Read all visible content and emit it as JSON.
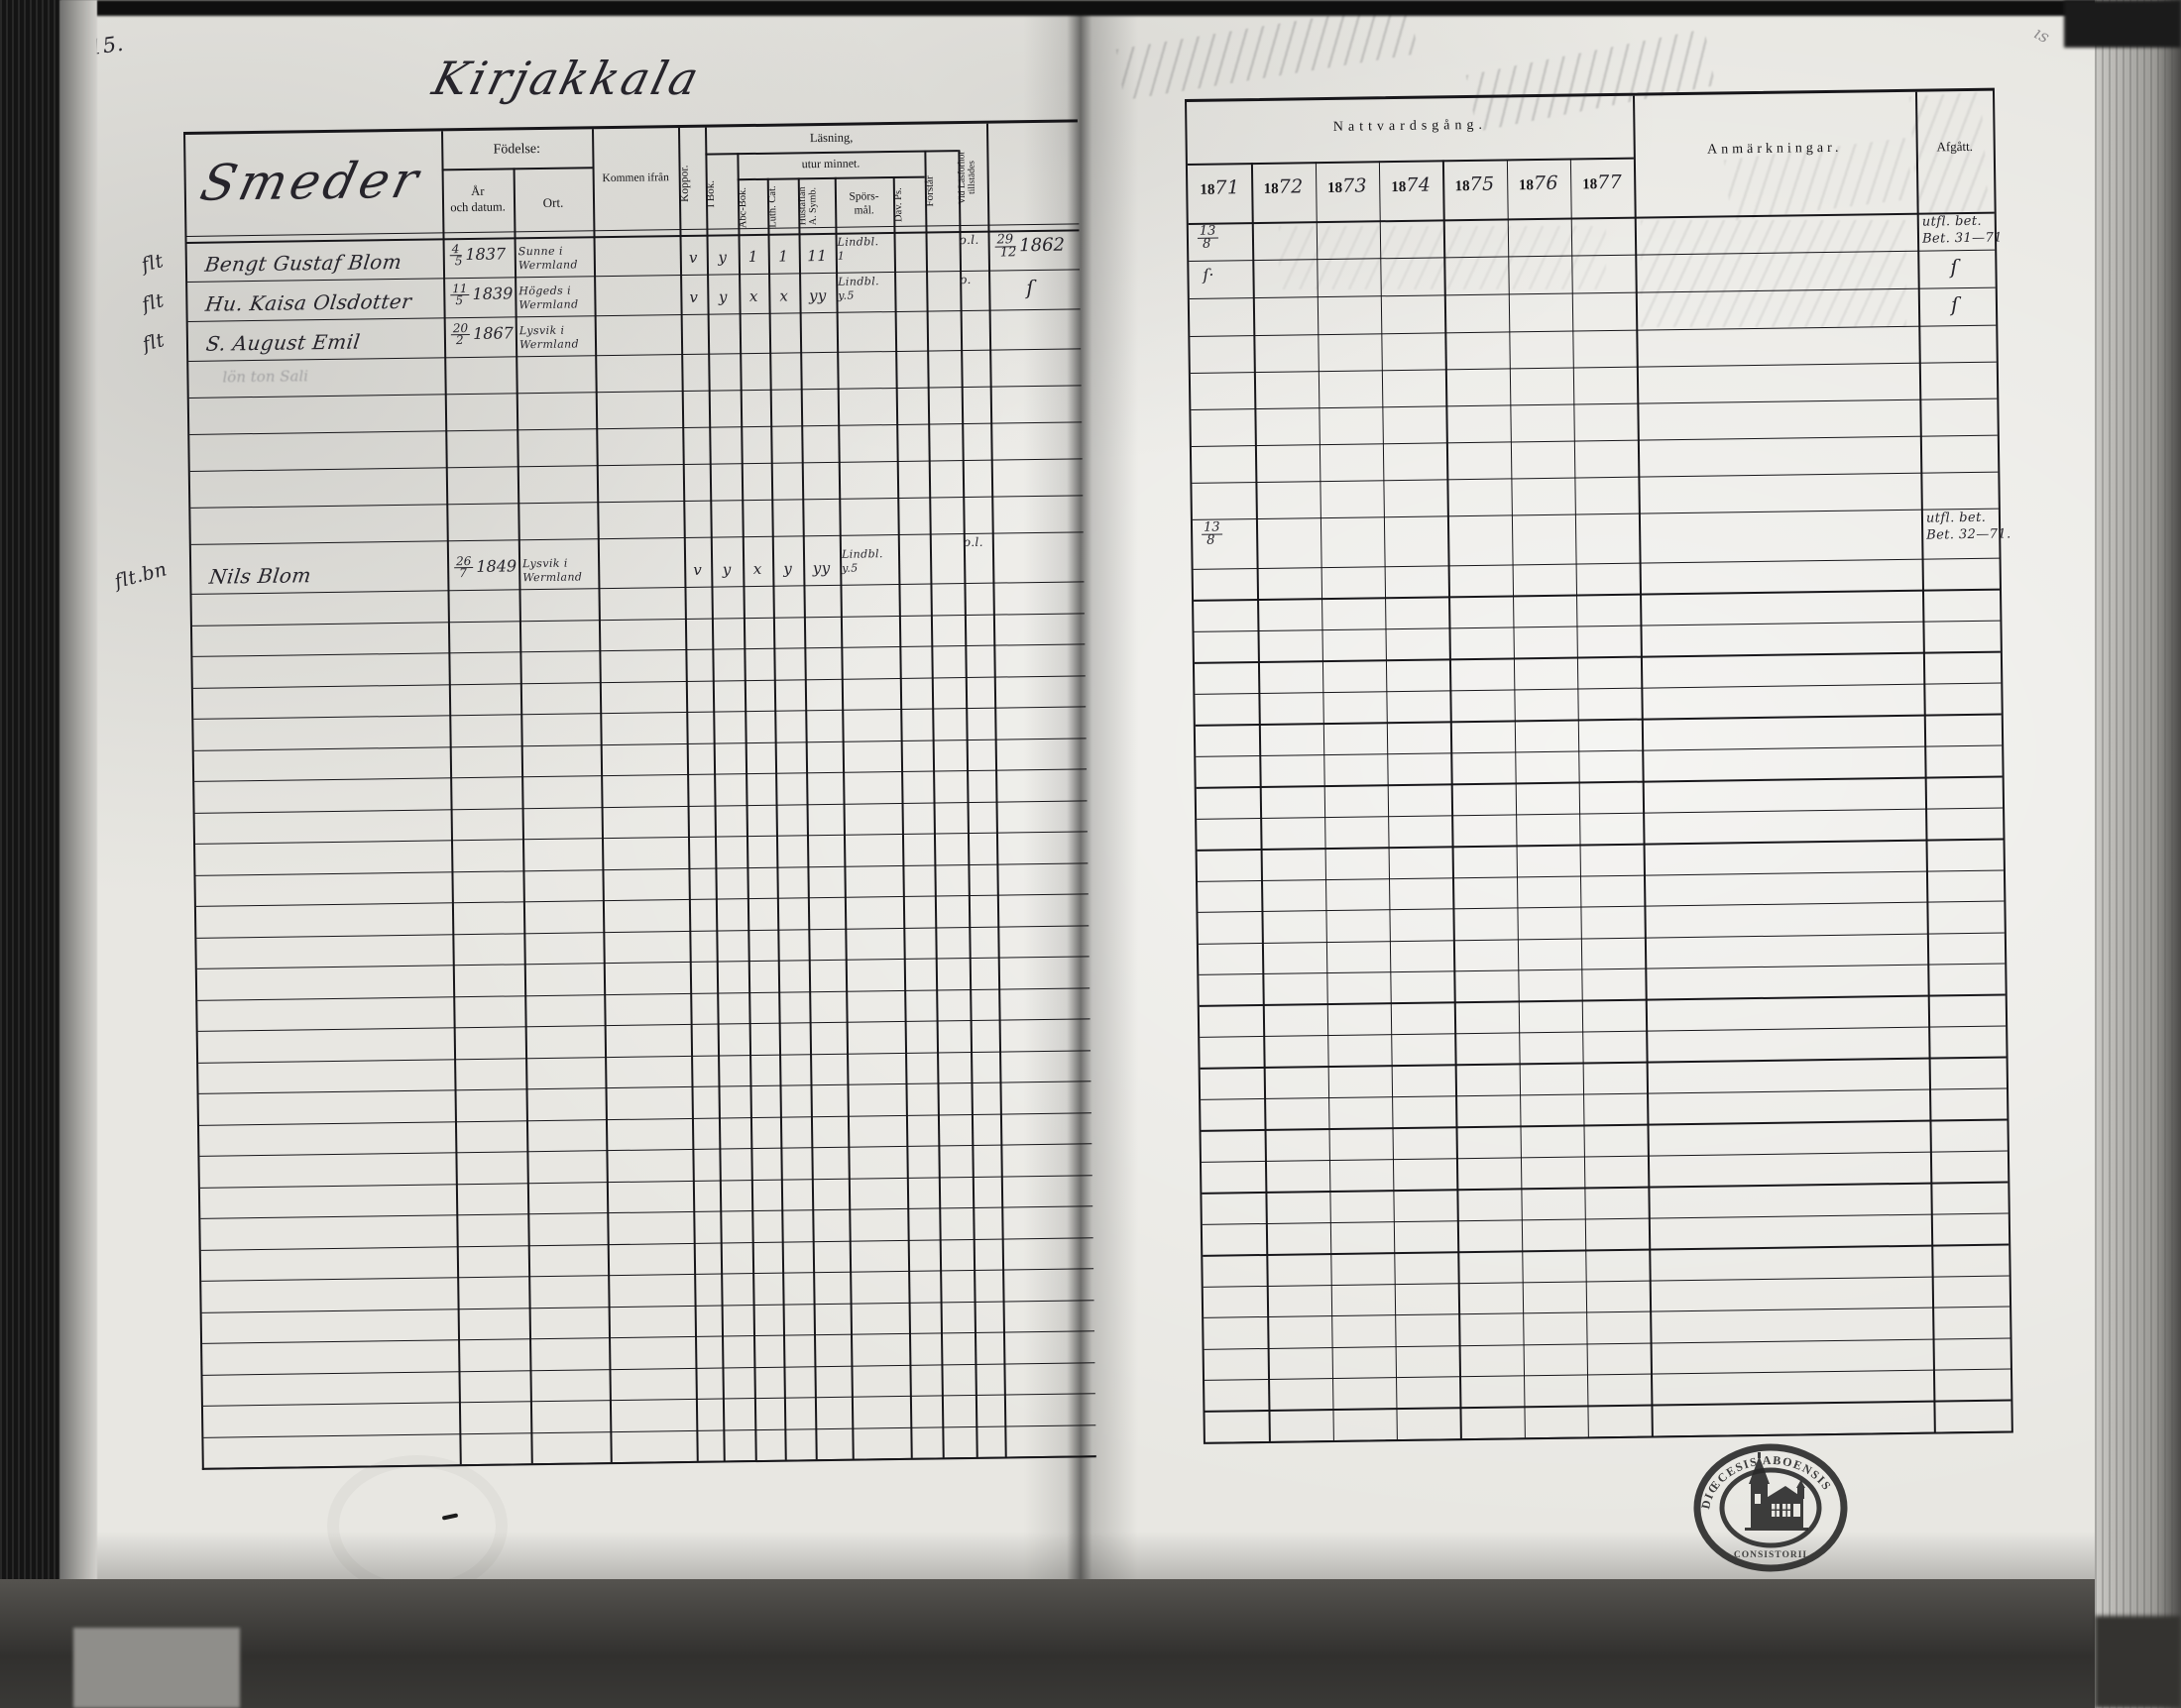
{
  "scan": {
    "page_number": "15.",
    "title": "Kirjakkala"
  },
  "left_table": {
    "category": "Smeder",
    "fodelse": "Födelse:",
    "ar_och_datum": "År\noch datum.",
    "ort": "Ort.",
    "kommen_ifran": "Kommen ifrån",
    "koppor": "Koppor.",
    "lasning": "Läsning,",
    "utur_minnet": "utur minnet.",
    "i_bok": "I Bok.",
    "abc_bok": "Abc-Bok.",
    "luth_cat": "Luth. Cat.",
    "hustaflan": "Hustaflan\nA. Symb.",
    "sporsmal": "Spörs-\nmål.",
    "dav_ps": "Dav. Ps.",
    "forstar": "Förstår",
    "vid_lasforhor": "Vid Läsförhör\ntillstädes"
  },
  "right_table": {
    "nattvardsgang": "Nattvardsgång.",
    "year_prefix": "18",
    "years": [
      "71",
      "72",
      "73",
      "74",
      "75",
      "76",
      "77"
    ],
    "anmarkningar": "Anmärkningar.",
    "afgatt": "Afgått."
  },
  "stamp": {
    "top_text": "DIŒCESIS ABOENSIS",
    "bottom_text": "CONSISTORII"
  },
  "rows": [
    {
      "margin": "flt",
      "name": "Bengt Gustaf Blom",
      "birth_num": "4",
      "birth_den": "5",
      "birth_year": "1837",
      "ort": "Sunne i\nWermland",
      "koppor": "v",
      "ibok": "y",
      "abc": "1",
      "luth": "1",
      "hust": "11",
      "spors": "Lindbl.\n1",
      "vid": "o.l.",
      "date_num": "29",
      "date_den": "12",
      "date_year": "1862",
      "y1871_num": "13",
      "y1871_den": "8",
      "afg": "utfl. bet.\nBet. 31—71"
    },
    {
      "margin": "flt",
      "name": "Hu. Kaisa Olsdotter",
      "birth_num": "11",
      "birth_den": "5",
      "birth_year": "1839",
      "ort": "Högeds i\nWermland",
      "koppor": "v",
      "ibok": "y",
      "abc": "x",
      "luth": "x",
      "hust": "yy",
      "spors": "Lindbl.\ny.5",
      "vid": "o.",
      "date_ditto": "ſ",
      "y1871_ditto": "ſ·",
      "afg_ditto": "ſ"
    },
    {
      "margin": "flt",
      "name": "S. August Emil",
      "birth_num": "20",
      "birth_den": "2",
      "birth_year": "1867",
      "ort": "Lysvik i\nWermland",
      "afg_ditto": "ſ"
    },
    {
      "pencil": "lön ton Sali"
    },
    {},
    {},
    {},
    {},
    {
      "margin": "flt.bn",
      "name": "Nils Blom",
      "birth_num": "26",
      "birth_den": "7",
      "birth_year": "1849",
      "ort": "Lysvik i\nWermland",
      "koppor": "v",
      "ibok": "y",
      "abc": "x",
      "luth": "y",
      "hust": "yy",
      "spors": "Lindbl.\ny.5",
      "vid": "o.l.",
      "y1871_num": "13",
      "y1871_den": "8",
      "afg": "utfl. bet.\nBet. 32—71."
    },
    {},
    {},
    {},
    {},
    {},
    {},
    {},
    {},
    {},
    {},
    {},
    {},
    {},
    {},
    {},
    {},
    {},
    {},
    {},
    {},
    {},
    {},
    {},
    {},
    {},
    {},
    {},
    {}
  ]
}
